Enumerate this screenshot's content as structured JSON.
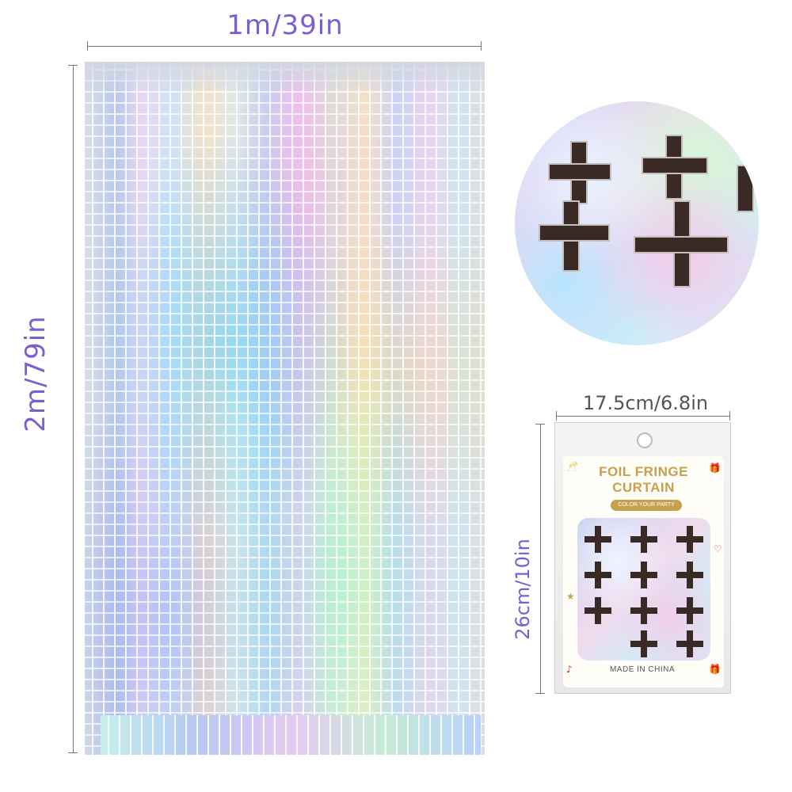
{
  "labels": {
    "width": "1m/39in",
    "height": "2m/79in",
    "package_width": "17.5cm/6.8in",
    "package_height": "26cm/10in"
  },
  "package": {
    "title_line1": "FOIL FRINGE",
    "title_line2": "CURTAIN",
    "subtitle": "COLOR YOUR PARTY",
    "origin": "MADE IN CHINA"
  },
  "colors": {
    "label": "#7b5fd0",
    "package_label": "#555555",
    "brand_gold": "#c6a04d"
  }
}
